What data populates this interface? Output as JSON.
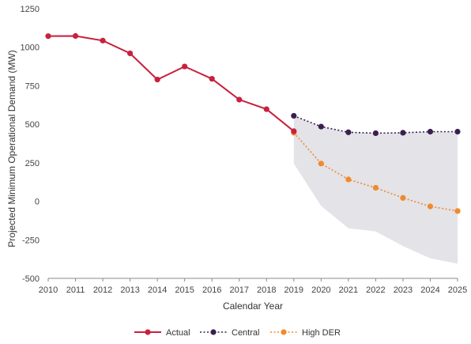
{
  "chart_data": {
    "type": "line",
    "xlabel": "Calendar Year",
    "ylabel": "Projected Minimum Operational Demand (MW)",
    "ylim": [
      -500,
      1250
    ],
    "yticks": [
      -500,
      -250,
      0,
      250,
      500,
      750,
      1000,
      1250
    ],
    "xlim": [
      2010,
      2025
    ],
    "xticks": [
      2010,
      2011,
      2012,
      2013,
      2014,
      2015,
      2016,
      2017,
      2018,
      2019,
      2020,
      2021,
      2022,
      2023,
      2024,
      2025
    ],
    "grid": false,
    "legend_position": "bottom",
    "series": [
      {
        "name": "Actual",
        "color": "#c8213f",
        "style": "solid",
        "x": [
          2010,
          2011,
          2012,
          2013,
          2014,
          2015,
          2016,
          2017,
          2018,
          2019
        ],
        "y": [
          1072,
          1073,
          1043,
          960,
          790,
          875,
          795,
          660,
          598,
          455
        ]
      },
      {
        "name": "Central",
        "color": "#3b1f4f",
        "style": "dotted",
        "x": [
          2019,
          2020,
          2021,
          2022,
          2023,
          2024,
          2025
        ],
        "y": [
          555,
          485,
          448,
          442,
          445,
          452,
          452
        ]
      },
      {
        "name": "High DER",
        "color": "#f08a2c",
        "style": "dotted",
        "x": [
          2019,
          2020,
          2021,
          2022,
          2023,
          2024,
          2025
        ],
        "y": [
          445,
          245,
          142,
          88,
          22,
          -33,
          -63
        ]
      }
    ],
    "band": {
      "color": "#e3e3e8",
      "x": [
        2019,
        2020,
        2021,
        2022,
        2023,
        2024,
        2025
      ],
      "upper": [
        555,
        485,
        448,
        442,
        445,
        452,
        452
      ],
      "lower": [
        245,
        -30,
        -175,
        -195,
        -290,
        -370,
        -405
      ]
    }
  }
}
